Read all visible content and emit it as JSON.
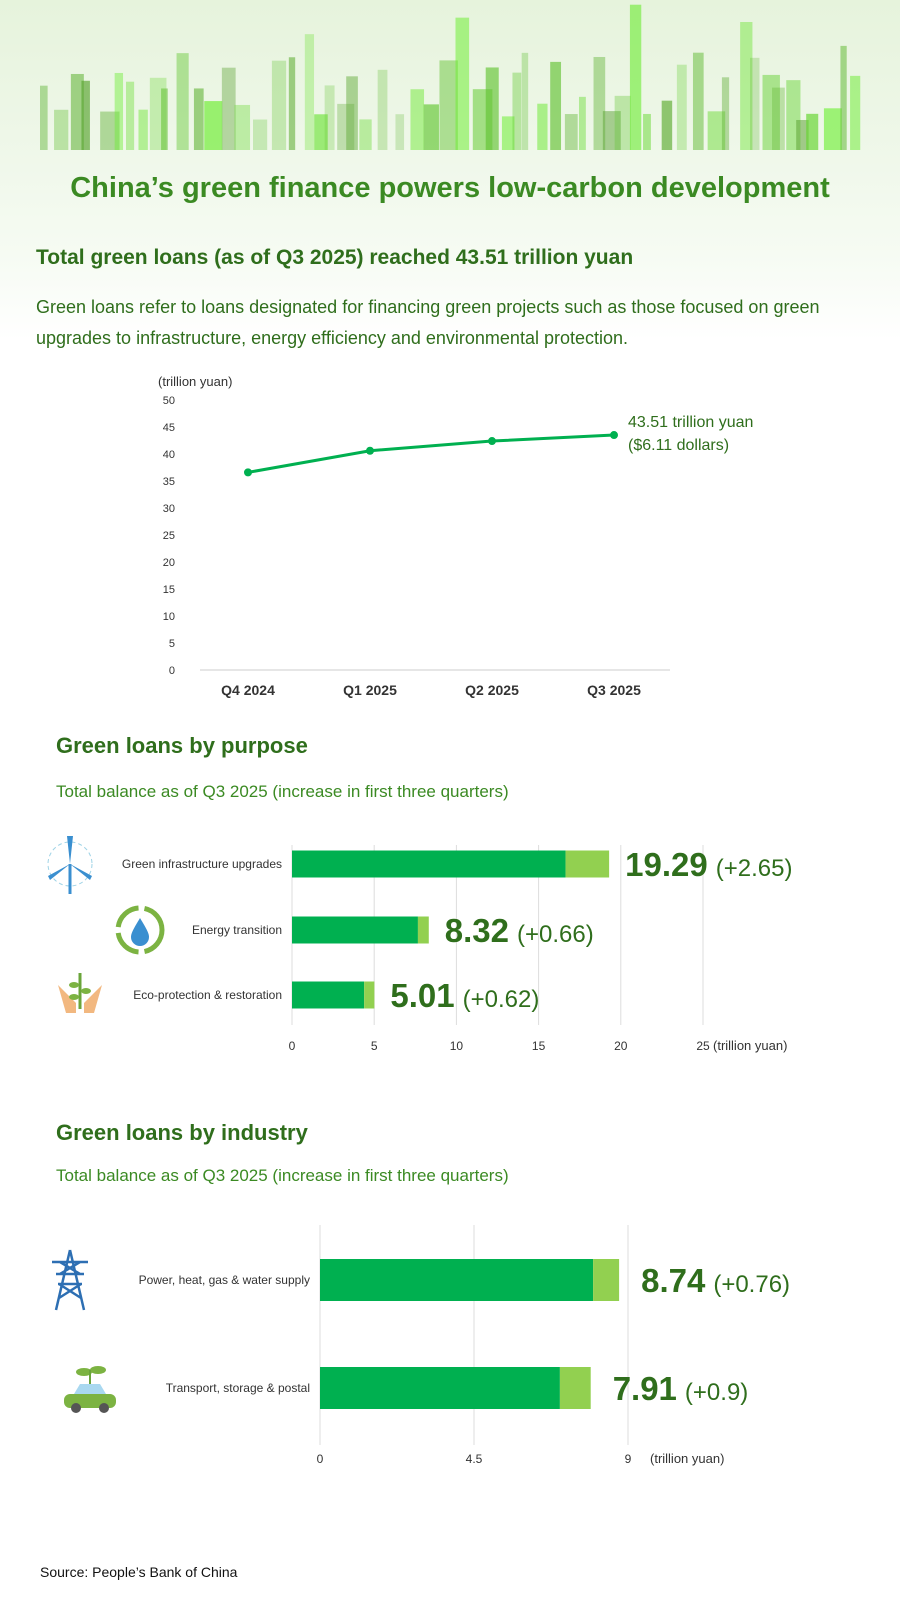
{
  "title": "China’s green finance powers low-carbon development",
  "subtitle": "Total green loans (as of Q3 2025) reached 43.51 trillion yuan",
  "description": "Green loans refer to loans designated for financing green projects such as those focused on green upgrades to infrastructure, energy efficiency and environmental protection.",
  "purpose_heading": "Green loans by purpose",
  "purpose_subheading": "Total balance as of Q3 2025 (increase in first three quarters)",
  "industry_heading": "Green loans by industry",
  "industry_subheading": "Total balance as of Q3 2025 (increase in first three quarters)",
  "source": "Source: People’s Bank of China",
  "colors": {
    "main": "#00b050",
    "increase": "#92d050",
    "text": "#2f6e1c"
  },
  "chart_data": [
    {
      "type": "line",
      "ylabel": "(trillion yuan)",
      "categories": [
        "Q4 2024",
        "Q1 2025",
        "Q2 2025",
        "Q3 2025"
      ],
      "values": [
        36.6,
        40.6,
        42.4,
        43.51
      ],
      "ylim": [
        0,
        50
      ],
      "yticks": [
        0,
        5,
        10,
        15,
        20,
        25,
        30,
        35,
        40,
        45,
        50
      ],
      "annotation": {
        "line1": "43.51 trillion yuan",
        "line2": "($6.11 dollars)"
      }
    },
    {
      "type": "bar",
      "orientation": "horizontal",
      "stacked": true,
      "unit": "(trillion yuan)",
      "xlim": [
        0,
        25
      ],
      "xticks": [
        0,
        5,
        10,
        15,
        20,
        25
      ],
      "categories": [
        "Green infrastructure upgrades",
        "Energy transition",
        "Eco-protection & restoration"
      ],
      "icons": [
        "wind-turbine-icon",
        "water-drop-recycle-icon",
        "hands-plant-icon"
      ],
      "totals": [
        19.29,
        8.32,
        5.01
      ],
      "increases": [
        2.65,
        0.66,
        0.62
      ],
      "total_labels": [
        "19.29",
        "8.32",
        "5.01"
      ],
      "increase_labels": [
        "(+2.65)",
        "(+0.66)",
        "(+0.62)"
      ]
    },
    {
      "type": "bar",
      "orientation": "horizontal",
      "stacked": true,
      "unit": "(trillion yuan)",
      "xlim": [
        0,
        9
      ],
      "xticks": [
        0,
        4.5,
        9
      ],
      "categories": [
        "Power, heat, gas & water supply",
        "Transport, storage & postal"
      ],
      "icons": [
        "power-tower-icon",
        "eco-car-icon"
      ],
      "totals": [
        8.74,
        7.91
      ],
      "increases": [
        0.76,
        0.9
      ],
      "total_labels": [
        "8.74",
        "7.91"
      ],
      "increase_labels": [
        "(+0.76)",
        "(+0.9)"
      ]
    }
  ]
}
